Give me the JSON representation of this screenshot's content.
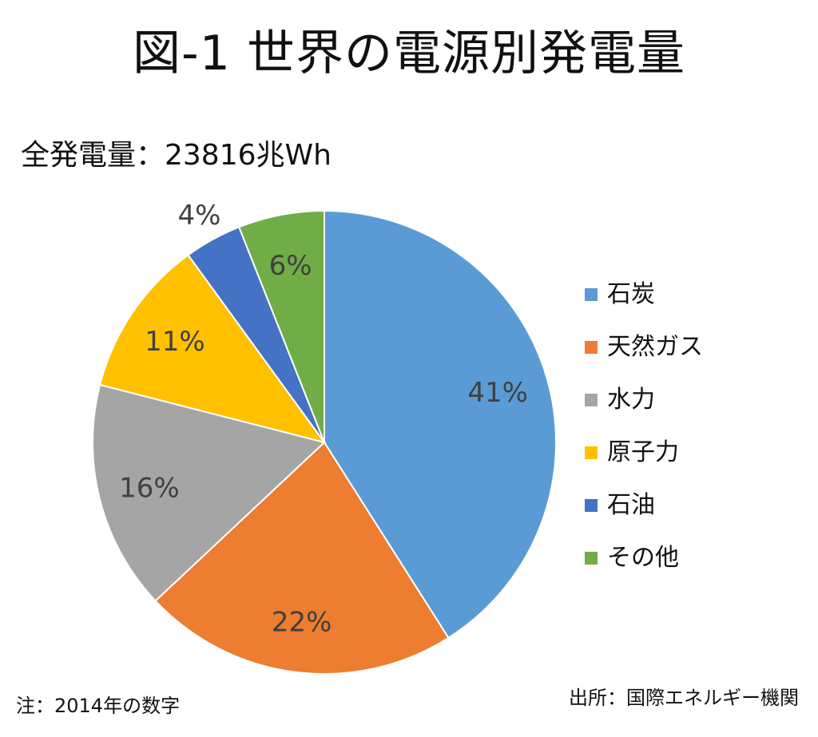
{
  "title": "図-1 世界の電源別発電量",
  "total_label": "全発電量：23816兆Wh",
  "note": "注：2014年の数字",
  "source": "出所：国際エネルギー機関",
  "chart_data": {
    "type": "pie",
    "categories": [
      "石炭",
      "天然ガス",
      "水力",
      "原子力",
      "石油",
      "その他"
    ],
    "values": [
      41,
      22,
      16,
      11,
      4,
      6
    ],
    "labels": [
      "41%",
      "22%",
      "16%",
      "11%",
      "4%",
      "6%"
    ],
    "colors": [
      "#5B9BD5",
      "#ED7D31",
      "#A5A5A5",
      "#FFC000",
      "#4472C4",
      "#70AD47"
    ],
    "start": "12 o'clock",
    "direction": "clockwise",
    "legend_position": "right"
  }
}
